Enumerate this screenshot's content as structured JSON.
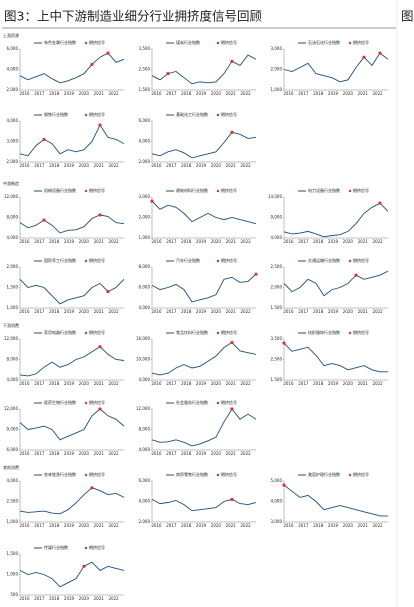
{
  "title": "图3：上中下游制造业细分行业拥挤度信号回顾",
  "right_title": "图",
  "signal_legend": "拥挤信号",
  "years": [
    "2016",
    "2017",
    "2018",
    "2019",
    "2020",
    "2021",
    "2022"
  ],
  "sections": [
    {
      "label": "上游资源",
      "charts": [
        {
          "name": "有色金属行业指数",
          "yticks": [
            {
              "value": 2000,
              "label": "2,000"
            },
            {
              "value": 4000,
              "label": "4,000"
            },
            {
              "value": 6000,
              "label": "6,000"
            }
          ],
          "values": [
            3400,
            3000,
            3300,
            3600,
            3100,
            2700,
            2900,
            3200,
            3600,
            4500,
            5200,
            5600,
            4700,
            5000
          ],
          "signals": [
            9,
            11
          ]
        },
        {
          "name": "煤炭行业指数",
          "yticks": [
            {
              "value": 1500,
              "label": "1,500"
            },
            {
              "value": 2500,
              "label": "2,500"
            },
            {
              "value": 3500,
              "label": "3,500"
            }
          ],
          "values": [
            2200,
            2000,
            2300,
            2400,
            2100,
            1800,
            1900,
            1850,
            1900,
            2300,
            2900,
            2700,
            3200,
            3000
          ],
          "signals": [
            2,
            10
          ]
        },
        {
          "name": "石油石化行业指数",
          "yticks": [
            {
              "value": 1000,
              "label": "1,000"
            },
            {
              "value": 2000,
              "label": "2,000"
            },
            {
              "value": 3000,
              "label": "3,000"
            }
          ],
          "values": [
            2000,
            1900,
            2100,
            2300,
            1800,
            1700,
            1600,
            1400,
            1500,
            2100,
            2600,
            2200,
            2800,
            2500
          ],
          "signals": [
            10,
            12
          ]
        },
        {
          "name": "钢铁行业指数",
          "yticks": [
            {
              "value": 2000,
              "label": "2,000"
            },
            {
              "value": 3000,
              "label": "3,000"
            },
            {
              "value": 4000,
              "label": "4,000"
            }
          ],
          "values": [
            2400,
            2300,
            2800,
            3100,
            2900,
            2400,
            2600,
            2500,
            2600,
            3000,
            3800,
            3200,
            3100,
            2900
          ],
          "signals": [
            3,
            10
          ]
        },
        {
          "name": "基础化工行业指数",
          "yticks": [
            {
              "value": 2000,
              "label": "2,000"
            },
            {
              "value": 4000,
              "label": "4,000"
            },
            {
              "value": 6000,
              "label": "6,000"
            }
          ],
          "values": [
            2800,
            2600,
            3000,
            3200,
            2900,
            2400,
            2600,
            2800,
            3000,
            3900,
            4900,
            4700,
            4300,
            4400
          ],
          "signals": [
            10
          ]
        }
      ]
    },
    {
      "label": "中游制造",
      "charts": [
        {
          "name": "机械设备行业指数",
          "yticks": [
            {
              "value": 4000,
              "label": "4,000"
            },
            {
              "value": 8000,
              "label": "8,000"
            },
            {
              "value": 12000,
              "label": "12,000"
            }
          ],
          "values": [
            7000,
            6000,
            6500,
            7500,
            6500,
            5000,
            5500,
            5600,
            6200,
            7800,
            8500,
            8200,
            7000,
            6800
          ],
          "signals": [
            3,
            10
          ]
        },
        {
          "name": "建筑材料行业指数",
          "yticks": [
            {
              "value": 1000,
              "label": "1,000"
            },
            {
              "value": 2000,
              "label": "2,000"
            },
            {
              "value": 3000,
              "label": "3,000"
            }
          ],
          "values": [
            2800,
            2400,
            2600,
            2500,
            2200,
            1800,
            2000,
            2200,
            2000,
            1900,
            2000,
            1900,
            1800,
            1700
          ],
          "signals": [
            0
          ]
        },
        {
          "name": "电力设备行业指数",
          "yticks": [
            {
              "value": 4000,
              "label": "4,000"
            },
            {
              "value": 9000,
              "label": "9,000"
            },
            {
              "value": 14000,
              "label": "14,000"
            }
          ],
          "values": [
            5500,
            5000,
            5200,
            5600,
            5000,
            4300,
            4600,
            4800,
            5600,
            7500,
            10000,
            11500,
            12500,
            10500
          ],
          "signals": [
            12
          ]
        },
        {
          "name": "国防军工行业指数",
          "yticks": [
            {
              "value": 1000,
              "label": "1,000"
            },
            {
              "value": 1500,
              "label": "1,500"
            },
            {
              "value": 2000,
              "label": "2,000"
            }
          ],
          "values": [
            1700,
            1500,
            1550,
            1500,
            1300,
            1100,
            1200,
            1250,
            1300,
            1500,
            1600,
            1400,
            1500,
            1700
          ],
          "signals": [
            11
          ]
        },
        {
          "name": "汽车行业指数",
          "yticks": [
            {
              "value": 4000,
              "label": "4,000"
            },
            {
              "value": 6000,
              "label": "6,000"
            },
            {
              "value": 8000,
              "label": "8,000"
            }
          ],
          "values": [
            6200,
            5800,
            6000,
            6300,
            5800,
            4600,
            4800,
            5000,
            5300,
            6800,
            7000,
            6500,
            6600,
            7300
          ],
          "signals": [
            13
          ]
        },
        {
          "name": "交通运输行业指数",
          "yticks": [
            {
              "value": 1500,
              "label": "1,500"
            },
            {
              "value": 2000,
              "label": "2,000"
            },
            {
              "value": 2500,
              "label": "2,500"
            }
          ],
          "values": [
            2100,
            1900,
            2000,
            2200,
            2100,
            1800,
            1950,
            2000,
            2100,
            2300,
            2200,
            2250,
            2300,
            2400
          ],
          "signals": [
            9
          ]
        }
      ]
    },
    {
      "label": "下游消费",
      "charts": [
        {
          "name": "家用电器行业指数",
          "yticks": [
            {
              "value": 4000,
              "label": "4,000"
            },
            {
              "value": 8000,
              "label": "8,000"
            },
            {
              "value": 12000,
              "label": "12,000"
            }
          ],
          "values": [
            5000,
            4800,
            5200,
            6500,
            7500,
            6500,
            7000,
            8000,
            8500,
            9500,
            10500,
            9000,
            8000,
            7800
          ],
          "signals": [
            10
          ]
        },
        {
          "name": "食品饮料行业指数",
          "yticks": [
            {
              "value": 4000,
              "label": "4,000"
            },
            {
              "value": 10000,
              "label": "10,000"
            },
            {
              "value": 16000,
              "label": "16,000"
            }
          ],
          "values": [
            6000,
            5500,
            6000,
            7500,
            8500,
            7500,
            8000,
            9500,
            11000,
            13500,
            15000,
            12500,
            12000,
            11500
          ],
          "signals": [
            10
          ]
        },
        {
          "name": "纺织服饰行业指数",
          "yticks": [
            {
              "value": 1500,
              "label": "1,500"
            },
            {
              "value": 2500,
              "label": "2,500"
            },
            {
              "value": 3500,
              "label": "3,500"
            }
          ],
          "values": [
            3300,
            2900,
            3000,
            3100,
            2700,
            2200,
            2300,
            2200,
            2000,
            2100,
            2200,
            2000,
            1900,
            1900
          ],
          "signals": [
            0
          ]
        },
        {
          "name": "医药生物行业指数",
          "yticks": [
            {
              "value": 6000,
              "label": "6,000"
            },
            {
              "value": 9000,
              "label": "9,000"
            },
            {
              "value": 12000,
              "label": "12,000"
            }
          ],
          "values": [
            10000,
            9000,
            9200,
            9500,
            9000,
            7500,
            8000,
            8500,
            9000,
            11000,
            12000,
            11000,
            10500,
            9500
          ],
          "signals": [
            10
          ]
        },
        {
          "name": "社会服务行业指数",
          "yticks": [
            {
              "value": 4000,
              "label": "4,000"
            },
            {
              "value": 8000,
              "label": "8,000"
            },
            {
              "value": 12000,
              "label": "12,000"
            }
          ],
          "values": [
            6000,
            5500,
            5600,
            6000,
            5500,
            4800,
            5200,
            5800,
            6500,
            9500,
            12000,
            10000,
            11000,
            10000
          ],
          "signals": [
            10
          ]
        }
      ]
    },
    {
      "label": "其他消费",
      "charts": [
        {
          "name": "农林牧渔行业指数",
          "yticks": [
            {
              "value": 1000,
              "label": "1,000"
            },
            {
              "value": 2500,
              "label": "2,500"
            },
            {
              "value": 4000,
              "label": "4,000"
            }
          ],
          "values": [
            1800,
            1700,
            1750,
            1800,
            1650,
            1600,
            1900,
            2400,
            3000,
            3500,
            3300,
            3000,
            3100,
            2800
          ],
          "signals": [
            9
          ]
        },
        {
          "name": "商贸零售行业指数",
          "yticks": [
            {
              "value": 2000,
              "label": "2,000"
            },
            {
              "value": 4000,
              "label": "4,000"
            },
            {
              "value": 6000,
              "label": "6,000"
            }
          ],
          "values": [
            4200,
            3800,
            3900,
            4100,
            3700,
            3100,
            3200,
            3300,
            3400,
            4000,
            4200,
            3800,
            3700,
            3900
          ],
          "signals": [
            10
          ]
        },
        {
          "name": "美容护理行业指数",
          "yticks": [
            {
              "value": 3000,
              "label": "3,000"
            },
            {
              "value": 4000,
              "label": "4,000"
            },
            {
              "value": 5000,
              "label": "5,000"
            }
          ],
          "values": [
            4800,
            4500,
            4200,
            4300,
            4000,
            3600,
            3700,
            3800,
            3700,
            3600,
            3500,
            3400,
            3300,
            3300
          ],
          "signals": [
            0
          ]
        },
        {
          "name": "传媒行业指数",
          "yticks": [
            500,
            {
              "value": 1000,
              "label": "1,000"
            },
            {
              "value": 1500,
              "label": "1,500"
            }
          ],
          "values": [
            1100,
            1000,
            1050,
            1000,
            900,
            700,
            800,
            900,
            1200,
            1300,
            1100,
            1200,
            1150,
            1100
          ],
          "signals": [
            8
          ]
        }
      ]
    }
  ]
}
